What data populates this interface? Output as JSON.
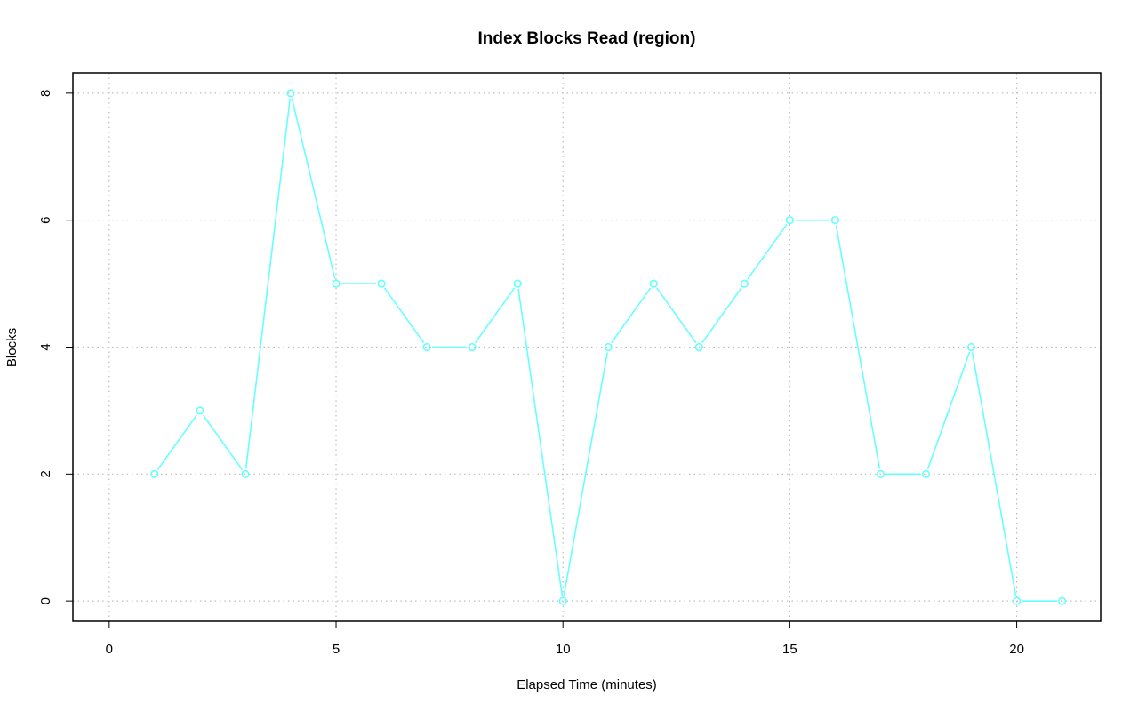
{
  "chart_data": {
    "type": "line",
    "title": "Index Blocks Read (region)",
    "xlabel": "Elapsed Time (minutes)",
    "ylabel": "Blocks",
    "xlim": [
      -0.8,
      21.85
    ],
    "ylim": [
      -0.32,
      8.32
    ],
    "x_ticks": [
      0,
      5,
      10,
      15,
      20
    ],
    "y_ticks": [
      0,
      2,
      4,
      6,
      8
    ],
    "grid": true,
    "legend": "none",
    "series": [
      {
        "color": "#66ffff",
        "marker": "open-circle",
        "x": [
          1,
          2,
          3,
          4,
          5,
          6,
          7,
          8,
          9,
          10,
          11,
          12,
          13,
          14,
          15,
          16,
          17,
          18,
          19,
          20,
          21
        ],
        "y": [
          2,
          3,
          2,
          8,
          5,
          5,
          4,
          4,
          5,
          0,
          4,
          5,
          4,
          5,
          6,
          6,
          2,
          2,
          4,
          0,
          0
        ]
      }
    ]
  }
}
